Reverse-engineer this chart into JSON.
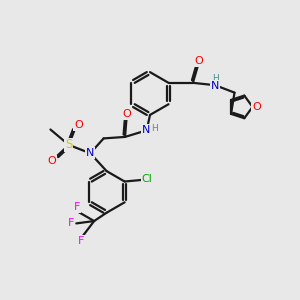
{
  "bg_color": "#e8e8e8",
  "bond_color": "#1a1a1a",
  "bond_width": 1.6,
  "dbo": 0.055,
  "atom_colors": {
    "O": "#ff0000",
    "N": "#0000cd",
    "S": "#cccc00",
    "Cl": "#00aa00",
    "F": "#ff00ff",
    "H": "#4a9090",
    "C": "#1a1a1a"
  },
  "xlim": [
    0,
    10
  ],
  "ylim": [
    0,
    10
  ]
}
